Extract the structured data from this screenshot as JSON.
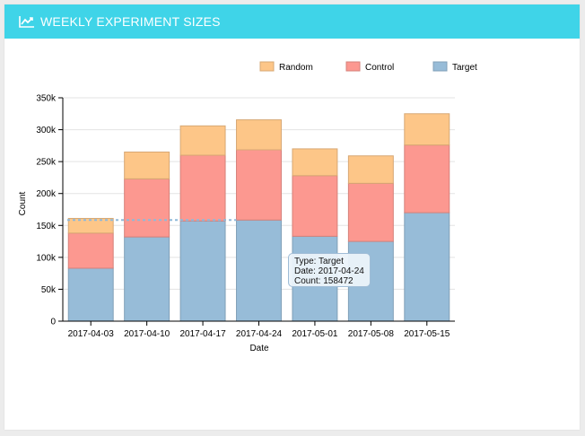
{
  "header": {
    "title": "WEEKLY EXPERIMENT SIZES",
    "icon": "line-chart-icon"
  },
  "colors": {
    "header": "#3fd4e8",
    "Random": "#fdc688",
    "Control": "#fc9890",
    "Target": "#97bcd8"
  },
  "tooltip": {
    "type": "Type: Target",
    "date": "Date: 2017-04-24",
    "count": "Count: 158472"
  },
  "chart_data": {
    "type": "bar",
    "stacked": true,
    "title": "",
    "xlabel": "Date",
    "ylabel": "Count",
    "ylim": [
      0,
      350000
    ],
    "yticks": [
      0,
      50000,
      100000,
      150000,
      200000,
      250000,
      300000,
      350000
    ],
    "ytick_labels": [
      "0",
      "50k",
      "100k",
      "150k",
      "200k",
      "250k",
      "300k",
      "350k"
    ],
    "legend_position": "top-right",
    "grid": "horizontal",
    "categories": [
      "2017-04-03",
      "2017-04-10",
      "2017-04-17",
      "2017-04-24",
      "2017-05-01",
      "2017-05-08",
      "2017-05-15"
    ],
    "series": [
      {
        "name": "Target",
        "values": [
          83000,
          132000,
          157000,
          158472,
          133000,
          125000,
          170000
        ]
      },
      {
        "name": "Control",
        "values": [
          55000,
          91000,
          103000,
          110000,
          95000,
          91000,
          106000
        ]
      },
      {
        "name": "Random",
        "values": [
          23000,
          42000,
          46000,
          47000,
          42000,
          43000,
          49000
        ]
      }
    ],
    "legend": [
      "Random",
      "Control",
      "Target"
    ],
    "highlight": {
      "series": "Target",
      "category": "2017-04-24",
      "value": 158472
    }
  }
}
